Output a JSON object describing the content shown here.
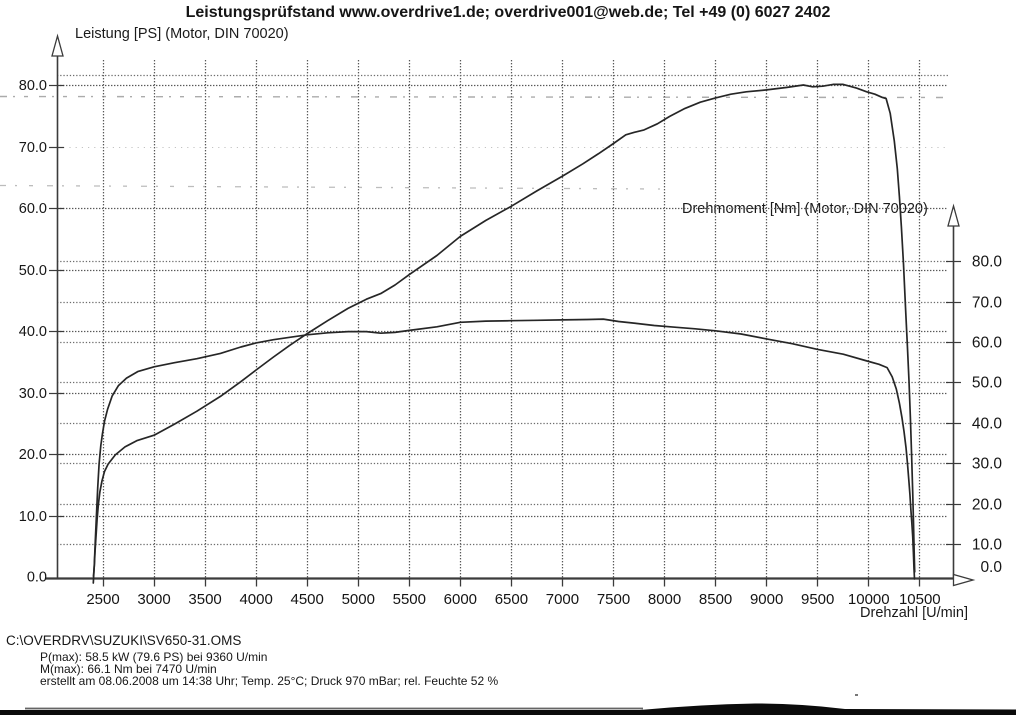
{
  "title": "Leistungsprüfstand www.overdrive1.de; overdrive001@web.de; Tel +49 (0) 6027 2402",
  "chart_data": {
    "type": "line",
    "grid": "dotted, horizontal gridlines for both axes, vertical every 500 rpm",
    "x_axis": {
      "label": "Drehzahl [U/min]",
      "ticks": [
        2500,
        3000,
        3500,
        4000,
        4500,
        5000,
        5500,
        6000,
        6500,
        7000,
        7500,
        8000,
        8500,
        9000,
        9500,
        10000,
        10500
      ],
      "range": [
        2160,
        10700
      ]
    },
    "left_axis": {
      "label": "Leistung [PS] (Motor, DIN 70020)",
      "ticks": [
        0,
        10,
        20,
        30,
        40,
        50,
        60,
        70,
        80
      ],
      "range": [
        0,
        84
      ]
    },
    "right_axis": {
      "label": "Drehmoment [Nm] (Motor, DIN 70020)",
      "ticks": [
        0,
        10,
        20,
        30,
        40,
        50,
        60,
        70,
        80
      ],
      "range": [
        0,
        92
      ]
    },
    "series": [
      {
        "name": "Leistung (PS)",
        "axis": "left",
        "points": [
          [
            2407,
            0.3
          ],
          [
            2415,
            2
          ],
          [
            2423,
            4.5
          ],
          [
            2432,
            7
          ],
          [
            2442,
            9.5
          ],
          [
            2455,
            12
          ],
          [
            2470,
            14
          ],
          [
            2490,
            15.8
          ],
          [
            2515,
            17.3
          ],
          [
            2550,
            18.5
          ],
          [
            2620,
            20
          ],
          [
            2715,
            21.3
          ],
          [
            2830,
            22.3
          ],
          [
            3000,
            23.2
          ],
          [
            3200,
            25
          ],
          [
            3420,
            27.1
          ],
          [
            3650,
            29.5
          ],
          [
            3850,
            31.9
          ],
          [
            4000,
            33.8
          ],
          [
            4170,
            35.9
          ],
          [
            4330,
            37.8
          ],
          [
            4500,
            39.7
          ],
          [
            4700,
            41.8
          ],
          [
            4900,
            43.8
          ],
          [
            5080,
            45.3
          ],
          [
            5220,
            46.2
          ],
          [
            5360,
            47.6
          ],
          [
            5500,
            49.3
          ],
          [
            5770,
            52.4
          ],
          [
            6000,
            55.5
          ],
          [
            6250,
            58.1
          ],
          [
            6500,
            60.4
          ],
          [
            6750,
            62.9
          ],
          [
            7000,
            65.3
          ],
          [
            7200,
            67.3
          ],
          [
            7350,
            68.9
          ],
          [
            7500,
            70.6
          ],
          [
            7620,
            72.0
          ],
          [
            7700,
            72.4
          ],
          [
            7800,
            72.8
          ],
          [
            7930,
            73.8
          ],
          [
            8050,
            75.0
          ],
          [
            8200,
            76.3
          ],
          [
            8350,
            77.3
          ],
          [
            8500,
            78.0
          ],
          [
            8650,
            78.6
          ],
          [
            8800,
            79.0
          ],
          [
            9000,
            79.3
          ],
          [
            9200,
            79.7
          ],
          [
            9360,
            80.1
          ],
          [
            9450,
            79.8
          ],
          [
            9550,
            79.9
          ],
          [
            9650,
            80.2
          ],
          [
            9750,
            80.2
          ],
          [
            9880,
            79.6
          ],
          [
            9980,
            79.0
          ],
          [
            10060,
            78.6
          ],
          [
            10130,
            78.1
          ],
          [
            10170,
            77.9
          ],
          [
            10210,
            75.5
          ],
          [
            10250,
            71
          ],
          [
            10280,
            66.5
          ],
          [
            10300,
            62
          ],
          [
            10320,
            57
          ],
          [
            10340,
            51
          ],
          [
            10360,
            44
          ],
          [
            10378,
            38
          ],
          [
            10394,
            32
          ],
          [
            10408,
            26
          ],
          [
            10420,
            20
          ],
          [
            10430,
            14
          ],
          [
            10438,
            9
          ],
          [
            10445,
            4
          ],
          [
            10450,
            1
          ]
        ]
      },
      {
        "name": "Drehmoment (Nm)",
        "axis": "right",
        "points": [
          [
            2405,
            0.5
          ],
          [
            2415,
            5
          ],
          [
            2425,
            11
          ],
          [
            2435,
            17
          ],
          [
            2448,
            24
          ],
          [
            2462,
            30
          ],
          [
            2478,
            34.5
          ],
          [
            2495,
            37.5
          ],
          [
            2515,
            40.5
          ],
          [
            2545,
            43.5
          ],
          [
            2590,
            46.8
          ],
          [
            2650,
            49.3
          ],
          [
            2730,
            51.2
          ],
          [
            2840,
            52.8
          ],
          [
            3000,
            54.0
          ],
          [
            3200,
            55.0
          ],
          [
            3420,
            56.0
          ],
          [
            3650,
            57.3
          ],
          [
            3850,
            58.9
          ],
          [
            4000,
            59.9
          ],
          [
            4170,
            60.7
          ],
          [
            4330,
            61.3
          ],
          [
            4500,
            61.9
          ],
          [
            4700,
            62.4
          ],
          [
            4900,
            62.7
          ],
          [
            5080,
            62.7
          ],
          [
            5220,
            62.3
          ],
          [
            5360,
            62.5
          ],
          [
            5500,
            63.0
          ],
          [
            5770,
            63.9
          ],
          [
            6000,
            65.0
          ],
          [
            6250,
            65.3
          ],
          [
            6500,
            65.4
          ],
          [
            6750,
            65.5
          ],
          [
            7000,
            65.6
          ],
          [
            7250,
            65.7
          ],
          [
            7400,
            65.8
          ],
          [
            7550,
            65.2
          ],
          [
            7700,
            64.8
          ],
          [
            7900,
            64.2
          ],
          [
            8100,
            63.8
          ],
          [
            8300,
            63.4
          ],
          [
            8500,
            62.9
          ],
          [
            8750,
            62.1
          ],
          [
            9000,
            60.9
          ],
          [
            9250,
            59.7
          ],
          [
            9500,
            58.3
          ],
          [
            9750,
            57.1
          ],
          [
            10000,
            55.3
          ],
          [
            10100,
            54.6
          ],
          [
            10180,
            53.8
          ],
          [
            10230,
            51.5
          ],
          [
            10270,
            48.5
          ],
          [
            10300,
            45
          ],
          [
            10325,
            41.5
          ],
          [
            10345,
            38
          ],
          [
            10365,
            34
          ],
          [
            10380,
            30
          ],
          [
            10392,
            26
          ],
          [
            10403,
            22.5
          ],
          [
            10413,
            18.5
          ],
          [
            10422,
            15.5
          ],
          [
            10430,
            12
          ],
          [
            10437,
            8
          ],
          [
            10443,
            4
          ],
          [
            10448,
            1.5
          ]
        ]
      }
    ]
  },
  "results": {
    "file_path": "C:\\OVERDRV\\SUZUKI\\SV650-31.OMS",
    "p_max": "P(max): 58.5 kW (79.6 PS) bei 9360 U/min",
    "m_max": "M(max): 66.1 Nm bei 7470 U/min",
    "created": "erstellt am 08.06.2008 um 14:38 Uhr; Temp. 25°C; Druck 970 mBar; rel. Feuchte 52 %"
  }
}
